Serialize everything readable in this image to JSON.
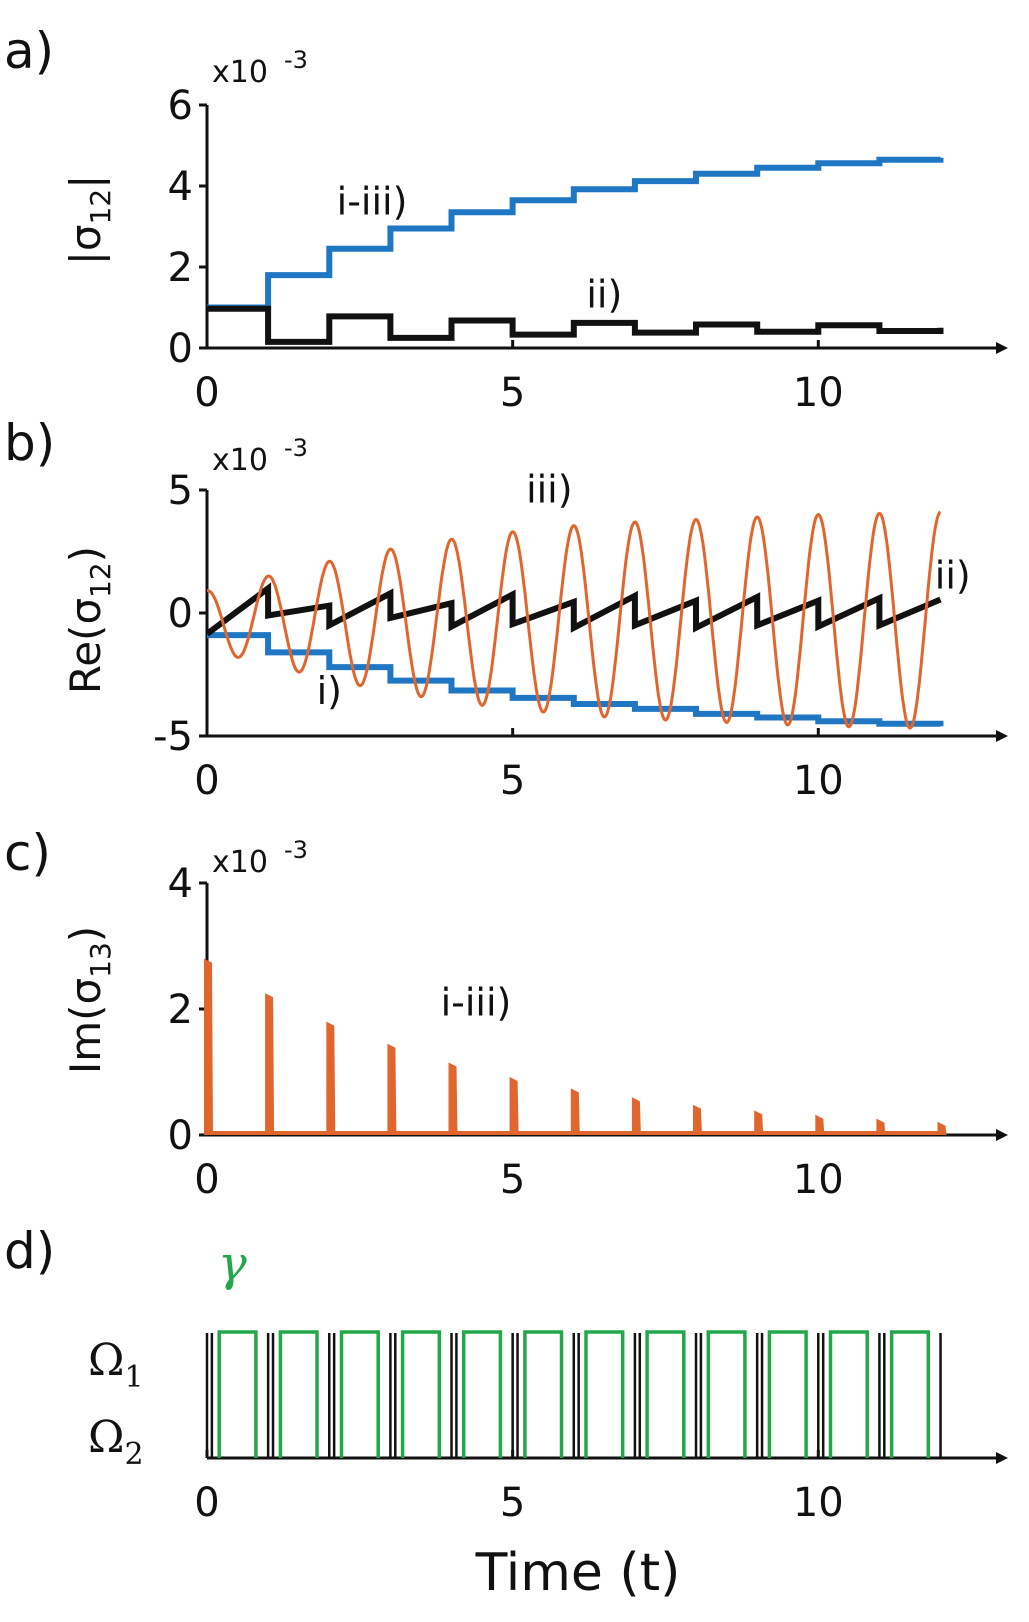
{
  "figure": {
    "xlabel": "Time (t)",
    "x_ticks": [
      "0",
      "5",
      "10"
    ],
    "x_range": [
      0,
      12.4
    ]
  },
  "chart_data": [
    {
      "panel": "a)",
      "type": "line",
      "ylabel_main": "|σ",
      "ylabel_sub": "12",
      "ylabel_end": "|",
      "exponent_base": "x10",
      "exponent_power": "-3",
      "ylim": [
        0,
        6
      ],
      "y_ticks": [
        "0",
        "2",
        "4",
        "6"
      ],
      "annotations": [
        {
          "text": "i-iii)",
          "x": 2.7,
          "y": 3.3
        },
        {
          "text": "ii)",
          "x": 6.5,
          "y": 1.0
        }
      ],
      "series": [
        {
          "label": "i-iii)",
          "color": "#1f77c4",
          "kind": "stair",
          "x": [
            0,
            1,
            2,
            3,
            4,
            5,
            6,
            7,
            8,
            9,
            10,
            11,
            12
          ],
          "y": [
            1.0,
            1.8,
            2.45,
            2.95,
            3.35,
            3.65,
            3.92,
            4.12,
            4.3,
            4.45,
            4.56,
            4.65,
            4.7
          ]
        },
        {
          "label": "ii)",
          "color": "#111111",
          "kind": "stair",
          "x": [
            0,
            1,
            2,
            3,
            4,
            5,
            6,
            7,
            8,
            9,
            10,
            11,
            12
          ],
          "y": [
            0.97,
            0.15,
            0.78,
            0.25,
            0.68,
            0.33,
            0.62,
            0.38,
            0.58,
            0.4,
            0.56,
            0.42,
            0.5
          ]
        }
      ]
    },
    {
      "panel": "b)",
      "type": "line",
      "ylabel_main": "Re(σ",
      "ylabel_sub": "12",
      "ylabel_end": ")",
      "exponent_base": "x10",
      "exponent_power": "-3",
      "ylim": [
        -5,
        5
      ],
      "y_ticks": [
        "-5",
        "0",
        "5"
      ],
      "annotations": [
        {
          "text": "iii)",
          "x": 5.6,
          "y": 4.5
        },
        {
          "text": "ii)",
          "x": 12.2,
          "y": 1.0
        },
        {
          "text": "i)",
          "x": 2.0,
          "y": -3.7
        }
      ],
      "series": [
        {
          "label": "i)",
          "color": "#1f77c4",
          "kind": "stair",
          "x": [
            0,
            1,
            2,
            3,
            4,
            5,
            6,
            7,
            8,
            9,
            10,
            11,
            12
          ],
          "y": [
            -0.9,
            -1.6,
            -2.2,
            -2.75,
            -3.15,
            -3.45,
            -3.7,
            -3.9,
            -4.1,
            -4.25,
            -4.4,
            -4.5,
            -4.6
          ]
        },
        {
          "label": "ii)",
          "color": "#111111",
          "kind": "sawtooth",
          "x": [
            0,
            1,
            2,
            3,
            4,
            5,
            6,
            7,
            8,
            9,
            10,
            11,
            12
          ],
          "y_start": [
            -0.85,
            -0.1,
            -0.5,
            -0.2,
            -0.55,
            -0.45,
            -0.6,
            -0.5,
            -0.6,
            -0.5,
            -0.55,
            -0.5,
            -0.5
          ],
          "y_end": [
            1.0,
            0.3,
            0.8,
            0.4,
            0.75,
            0.45,
            0.7,
            0.5,
            0.65,
            0.5,
            0.6,
            0.55,
            0.6
          ]
        },
        {
          "label": "iii)",
          "color": "#e0662e",
          "kind": "oscillation",
          "period": 1.0,
          "offset": -0.3,
          "t_start": 0,
          "t_end": 12,
          "x": [
            0,
            1,
            2,
            3,
            4,
            5,
            6,
            7,
            8,
            9,
            10,
            11,
            12
          ],
          "amplitude": [
            1.2,
            1.8,
            2.4,
            2.9,
            3.3,
            3.6,
            3.85,
            4.0,
            4.1,
            4.2,
            4.3,
            4.35,
            4.4
          ]
        }
      ]
    },
    {
      "panel": "c)",
      "type": "bar",
      "ylabel_main": "Im(σ",
      "ylabel_sub": "13",
      "ylabel_end": ")",
      "exponent_base": "x10",
      "exponent_power": "-3",
      "ylim": [
        0,
        4
      ],
      "y_ticks": [
        "0",
        "2",
        "4"
      ],
      "annotations": [
        {
          "text": "i-iii)",
          "x": 4.4,
          "y": 1.9
        }
      ],
      "series": [
        {
          "label": "i-iii)",
          "color": "#e0662e",
          "kind": "spikes",
          "x": [
            0,
            1,
            2,
            3,
            4,
            5,
            6,
            7,
            8,
            9,
            10,
            11,
            12
          ],
          "y": [
            2.8,
            2.25,
            1.8,
            1.45,
            1.15,
            0.92,
            0.74,
            0.6,
            0.48,
            0.39,
            0.32,
            0.26,
            0.21
          ]
        }
      ]
    },
    {
      "panel": "d)",
      "type": "line",
      "labels": {
        "omega1_base": "Ω",
        "omega1_sub": "1",
        "omega2_base": "Ω",
        "omega2_sub": "2",
        "gamma": "γ"
      },
      "annotations": [],
      "series": [
        {
          "label": "γ",
          "color": "#22a84a",
          "kind": "pulse_train",
          "on_fraction": [
            0.2,
            0.8
          ],
          "x": [
            0,
            1,
            2,
            3,
            4,
            5,
            6,
            7,
            8,
            9,
            10,
            11
          ]
        },
        {
          "label": "Ω",
          "color": "#111111",
          "kind": "thin_lines",
          "x": [
            0,
            0.08,
            1,
            1.08,
            2,
            2.08,
            3,
            3.08,
            4,
            4.08,
            5,
            5.08,
            6,
            6.08,
            7,
            7.08,
            8,
            8.08,
            9,
            9.08,
            10,
            10.08,
            11,
            11.08,
            12
          ]
        }
      ]
    }
  ]
}
